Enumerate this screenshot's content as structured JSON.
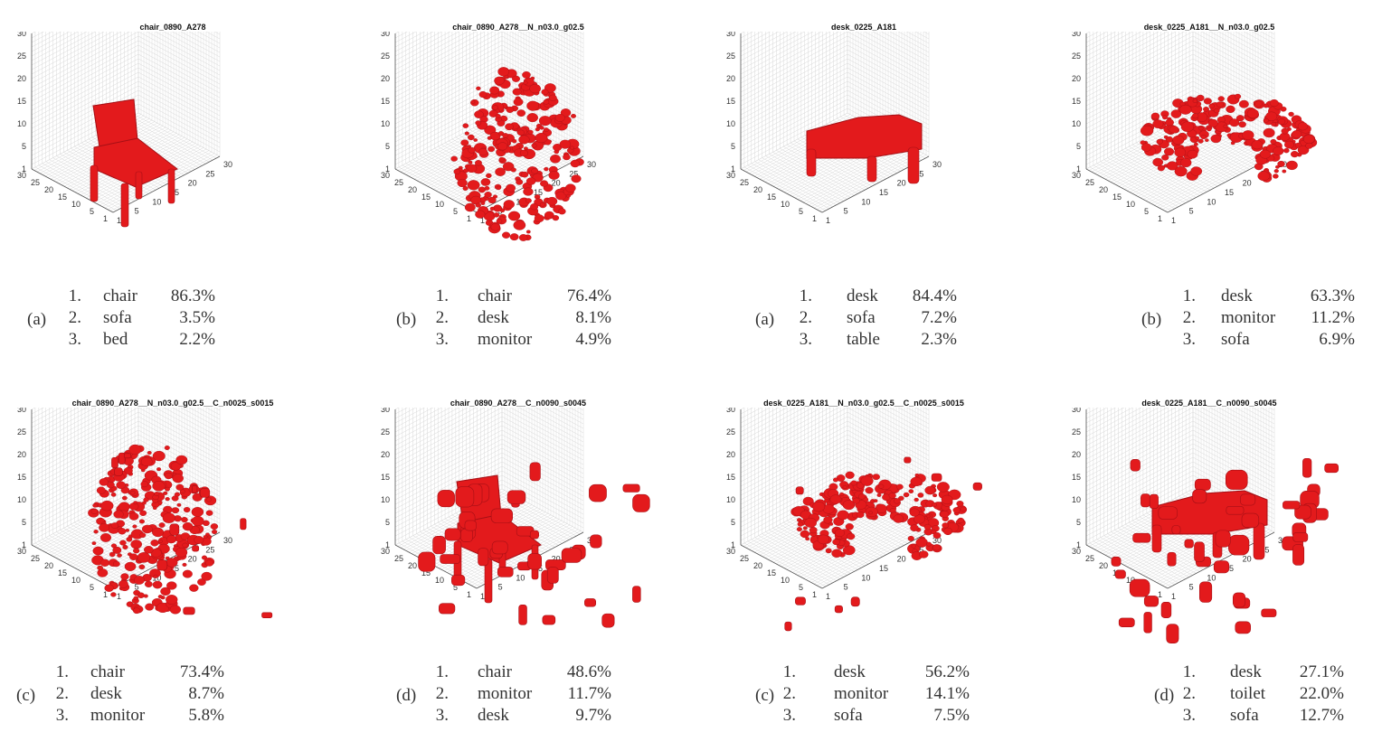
{
  "colors": {
    "voxel": "#e31a1c",
    "voxel_dark": "#a50f15",
    "grid": "#d8d8d8",
    "axis": "#555555"
  },
  "axis_ticks": {
    "z": [
      "30",
      "25",
      "20",
      "15",
      "10",
      "5",
      "1"
    ],
    "left": [
      "30",
      "25",
      "20",
      "15",
      "10",
      "5",
      "1"
    ],
    "right": [
      "1",
      "5",
      "10",
      "15",
      "20",
      "25",
      "30"
    ]
  },
  "panels": [
    {
      "title": "chair_0890_A278",
      "label": "(a)",
      "shape": "chair",
      "results": [
        {
          "rank": "1.",
          "cls": "chair",
          "pct": "86.3%"
        },
        {
          "rank": "2.",
          "cls": "sofa",
          "pct": "3.5%"
        },
        {
          "rank": "3.",
          "cls": "bed",
          "pct": "2.2%"
        }
      ]
    },
    {
      "title": "chair_0890_A278__N_n03.0_g02.5",
      "label": "(b)",
      "shape": "noisy-chair",
      "results": [
        {
          "rank": "1.",
          "cls": "chair",
          "pct": "76.4%"
        },
        {
          "rank": "2.",
          "cls": "desk",
          "pct": "8.1%"
        },
        {
          "rank": "3.",
          "cls": "monitor",
          "pct": "4.9%"
        }
      ]
    },
    {
      "title": "desk_0225_A181",
      "label": "(a)",
      "shape": "desk",
      "results": [
        {
          "rank": "1.",
          "cls": "desk",
          "pct": "84.4%"
        },
        {
          "rank": "2.",
          "cls": "sofa",
          "pct": "7.2%"
        },
        {
          "rank": "3.",
          "cls": "table",
          "pct": "2.3%"
        }
      ]
    },
    {
      "title": "desk_0225_A181__N_n03.0_g02.5",
      "label": "(b)",
      "shape": "noisy-desk",
      "results": [
        {
          "rank": "1.",
          "cls": "desk",
          "pct": "63.3%"
        },
        {
          "rank": "2.",
          "cls": "monitor",
          "pct": "11.2%"
        },
        {
          "rank": "3.",
          "cls": "sofa",
          "pct": "6.9%"
        }
      ]
    },
    {
      "title": "chair_0890_A278__N_n03.0_g02.5__C_n0025_s0015",
      "label": "(c)",
      "shape": "noisy-chair-clutter",
      "results": [
        {
          "rank": "1.",
          "cls": "chair",
          "pct": "73.4%"
        },
        {
          "rank": "2.",
          "cls": "desk",
          "pct": "8.7%"
        },
        {
          "rank": "3.",
          "cls": "monitor",
          "pct": "5.8%"
        }
      ]
    },
    {
      "title": "chair_0890_A278__C_n0090_s0045",
      "label": "(d)",
      "shape": "chair-clutter",
      "results": [
        {
          "rank": "1.",
          "cls": "chair",
          "pct": "48.6%"
        },
        {
          "rank": "2.",
          "cls": "monitor",
          "pct": "11.7%"
        },
        {
          "rank": "3.",
          "cls": "desk",
          "pct": "9.7%"
        }
      ]
    },
    {
      "title": "desk_0225_A181__N_n03.0_g02.5__C_n0025_s0015",
      "label": "(c)",
      "shape": "noisy-desk-clutter",
      "results": [
        {
          "rank": "1.",
          "cls": "desk",
          "pct": "56.2%"
        },
        {
          "rank": "2.",
          "cls": "monitor",
          "pct": "14.1%"
        },
        {
          "rank": "3.",
          "cls": "sofa",
          "pct": "7.5%"
        }
      ]
    },
    {
      "title": "desk_0225_A181__C_n0090_s0045",
      "label": "(d)",
      "shape": "desk-clutter",
      "results": [
        {
          "rank": "1.",
          "cls": "desk",
          "pct": "27.1%"
        },
        {
          "rank": "2.",
          "cls": "toilet",
          "pct": "22.0%"
        },
        {
          "rank": "3.",
          "cls": "sofa",
          "pct": "12.7%"
        }
      ]
    }
  ]
}
